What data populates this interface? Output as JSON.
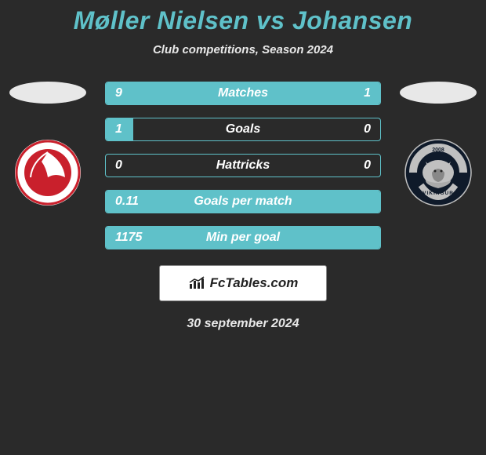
{
  "colors": {
    "title": "#5fc1c9",
    "accent": "#5fc1c9",
    "border": "#5fc1c9",
    "background": "#2a2a2a",
    "ellipse": "#e8e8e8"
  },
  "header": {
    "title": "Møller Nielsen vs Johansen",
    "subtitle": "Club competitions, Season 2024"
  },
  "stats": [
    {
      "label": "Matches",
      "left_val": "9",
      "right_val": "1",
      "left_pct": 82,
      "right_pct": 18
    },
    {
      "label": "Goals",
      "left_val": "1",
      "right_val": "0",
      "left_pct": 10,
      "right_pct": 0
    },
    {
      "label": "Hattricks",
      "left_val": "0",
      "right_val": "0",
      "left_pct": 0,
      "right_pct": 0
    },
    {
      "label": "Goals per match",
      "left_val": "0.11",
      "right_val": "",
      "left_pct": 100,
      "right_pct": 0
    },
    {
      "label": "Min per goal",
      "left_val": "1175",
      "right_val": "",
      "left_pct": 100,
      "right_pct": 0
    }
  ],
  "brand": {
    "text": "FcTables.com",
    "icon": "bar-chart-icon"
  },
  "date": "30 september 2024",
  "crests": {
    "left": {
      "name": "red-circle-crest",
      "primary": "#c9202c",
      "secondary": "#ffffff"
    },
    "right": {
      "name": "vikingur-crest",
      "year": "2008",
      "primary": "#0f1a2a",
      "secondary": "#c0c0c0"
    }
  }
}
